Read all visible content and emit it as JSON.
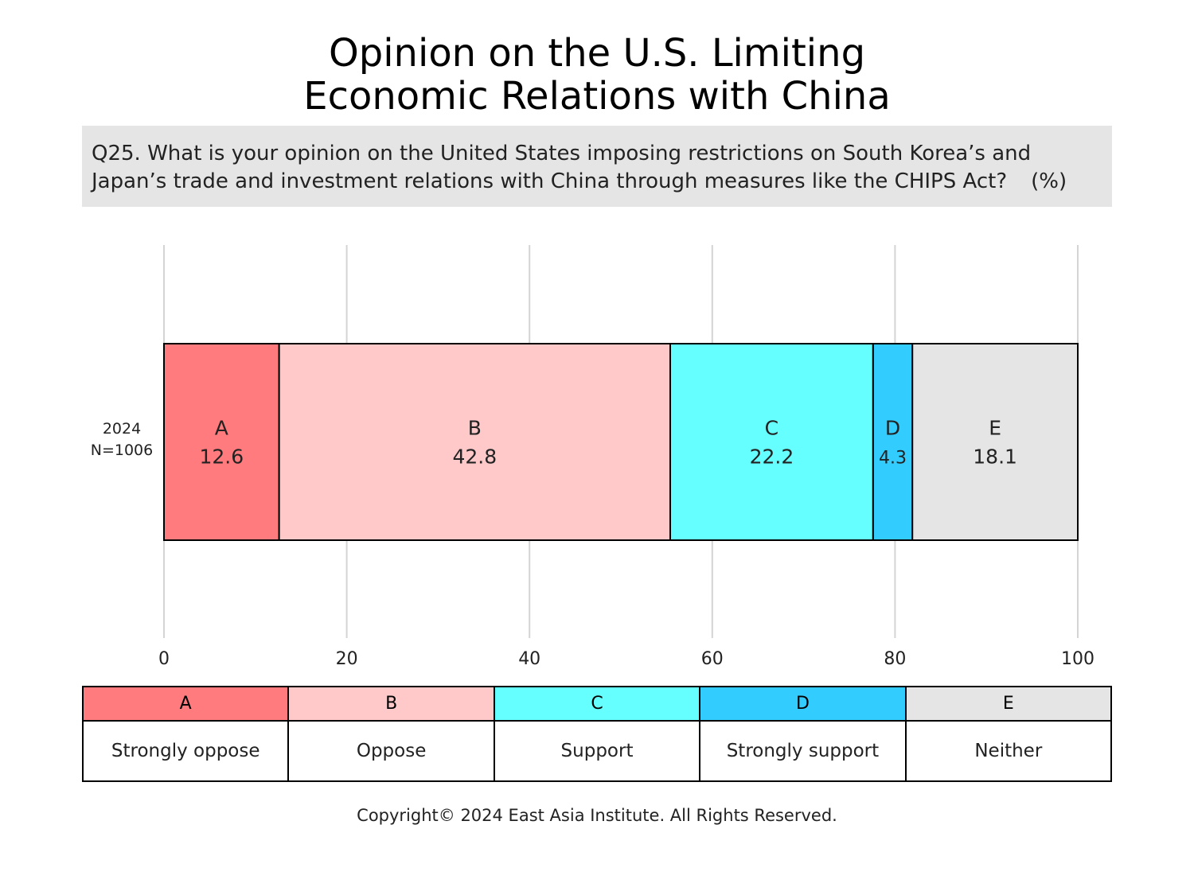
{
  "title_line1": "Opinion on the U.S. Limiting",
  "title_line2": "Economic Relations with China",
  "question_line1": "Q25. What is your opinion on the United States imposing restrictions on South Korea’s and",
  "question_line2": "Japan’s trade and investment relations with China through measures like the CHIPS Act?",
  "unit": "(%)",
  "copyright": "Copyright© 2024 East Asia Institute. All Rights Reserved.",
  "chart_data": {
    "type": "bar",
    "orientation": "horizontal",
    "stacked": true,
    "categories": [
      "2024\nN=1006"
    ],
    "series": [
      {
        "name": "A",
        "values": [
          12.6
        ],
        "color": "#ff7b7e"
      },
      {
        "name": "B",
        "values": [
          42.8
        ],
        "color": "#ffc9c9"
      },
      {
        "name": "C",
        "values": [
          22.2
        ],
        "color": "#66ffff"
      },
      {
        "name": "D",
        "values": [
          4.3
        ],
        "color": "#33ccff"
      },
      {
        "name": "E",
        "values": [
          18.1
        ],
        "color": "#e6e5e6"
      }
    ],
    "xlim": [
      0,
      100
    ],
    "xticks": [
      0,
      20,
      40,
      60,
      80,
      100
    ],
    "grid": true
  },
  "legend": [
    {
      "key": "A",
      "label": "Strongly oppose",
      "color": "#ff7b7e"
    },
    {
      "key": "B",
      "label": "Oppose",
      "color": "#ffc9c9"
    },
    {
      "key": "C",
      "label": "Support",
      "color": "#66ffff"
    },
    {
      "key": "D",
      "label": "Strongly support",
      "color": "#33ccff"
    },
    {
      "key": "E",
      "label": "Neither",
      "color": "#e6e5e6"
    }
  ]
}
